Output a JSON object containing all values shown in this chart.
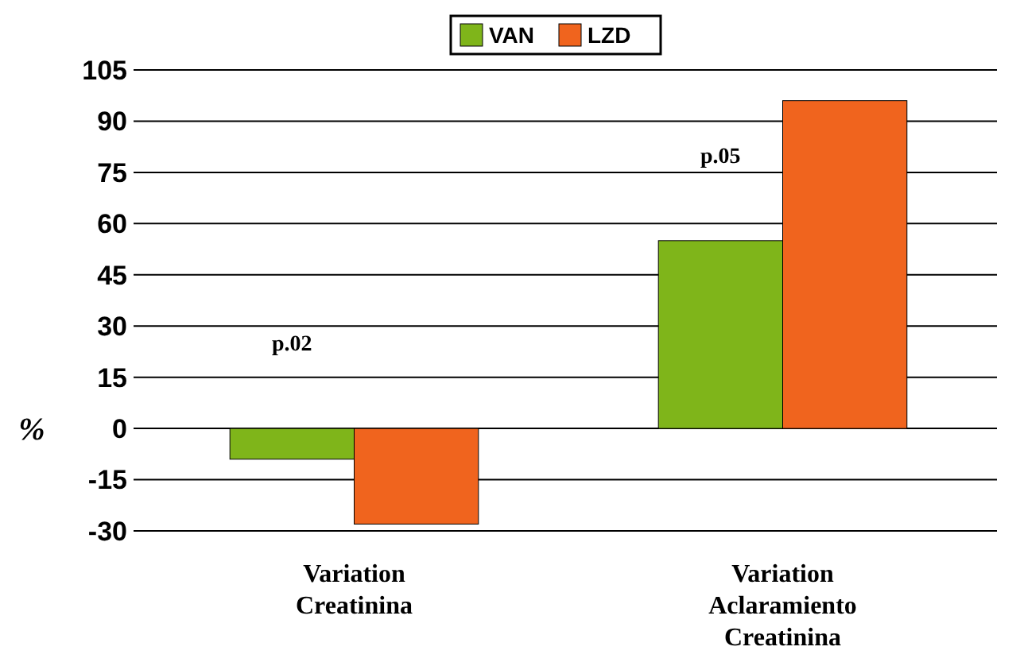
{
  "chart_data": {
    "type": "bar",
    "categories": [
      "Variation Creatinina",
      "Variation Aclaramiento Creatinina"
    ],
    "series": [
      {
        "name": "VAN",
        "color": "#7fb51a",
        "values": [
          -9,
          55
        ]
      },
      {
        "name": "LZD",
        "color": "#f0641e",
        "values": [
          -28,
          96
        ]
      }
    ],
    "ylabel": "%",
    "ylim": [
      -30,
      105
    ],
    "yticks": [
      -30,
      -15,
      0,
      15,
      30,
      45,
      60,
      75,
      90,
      105
    ],
    "grid": "y",
    "legend": "top",
    "annotations": [
      "p.02",
      "p.05"
    ]
  }
}
